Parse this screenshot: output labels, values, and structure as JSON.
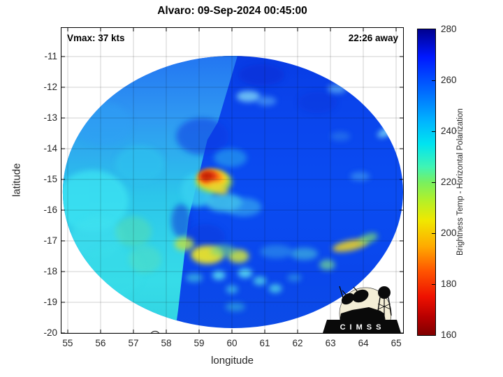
{
  "figure": {
    "title": "Alvaro: 09-Sep-2024 00:45:00"
  },
  "annotations": {
    "vmax": "Vmax: 37 kts",
    "countdown": "22:26 away"
  },
  "chart_data": {
    "type": "heatmap",
    "title": "Alvaro: 09-Sep-2024 00:45:00",
    "subtitle_left": "Vmax: 37 kts",
    "subtitle_right": "22:26 away",
    "xlabel": "longitude",
    "ylabel": "latitude",
    "xlim": [
      54.81,
      65.21
    ],
    "ylim": [
      -10.07,
      -20.0
    ],
    "xticks": [
      55,
      56,
      57,
      58,
      59,
      60,
      61,
      62,
      63,
      64,
      65
    ],
    "yticks": [
      -11,
      -12,
      -13,
      -14,
      -15,
      -16,
      -17,
      -18,
      -19,
      -20
    ],
    "grid": true,
    "grid_color": "rgba(0,0,0,0.18)",
    "colorbar": {
      "label": "Brightness Temp - Horizontal Polarization",
      "min": 160,
      "max": 280,
      "ticks": [
        160,
        180,
        200,
        220,
        240,
        260,
        280
      ],
      "stops": [
        [
          0,
          "#00008f"
        ],
        [
          0.09,
          "#0018ff"
        ],
        [
          0.2,
          "#0068ff"
        ],
        [
          0.3,
          "#00b4ff"
        ],
        [
          0.375,
          "#00e4f0"
        ],
        [
          0.45,
          "#40f4b4"
        ],
        [
          0.5,
          "#78f060"
        ],
        [
          0.56,
          "#b4f028"
        ],
        [
          0.625,
          "#f0e800"
        ],
        [
          0.71,
          "#ffaa00"
        ],
        [
          0.79,
          "#ff5500"
        ],
        [
          0.875,
          "#ee1100"
        ],
        [
          0.94,
          "#b80000"
        ],
        [
          1,
          "#800000"
        ]
      ]
    },
    "swath": {
      "center": [
        60.03,
        -15.41
      ],
      "radius_deg": [
        5.18,
        4.43
      ],
      "seam": [
        [
          60.19,
          -10.9
        ],
        [
          59.57,
          -13.14
        ],
        [
          59.25,
          -13.71
        ],
        [
          58.68,
          -16.25
        ],
        [
          58.36,
          -19.27
        ],
        [
          58.25,
          -20.1
        ]
      ],
      "right_gradient": [
        [
          0,
          "#0636e0"
        ],
        [
          0.25,
          "#0a44ec"
        ],
        [
          0.55,
          "#0a4cf2"
        ],
        [
          0.8,
          "#0a46ec"
        ],
        [
          1,
          "#0c4ce6"
        ]
      ],
      "left_gradient": [
        [
          0,
          "#1a5ef2"
        ],
        [
          0.3,
          "#2f97f2"
        ],
        [
          0.55,
          "#2cc6ea"
        ],
        [
          0.8,
          "#36dce8"
        ],
        [
          1,
          "#30d0e0"
        ]
      ]
    },
    "storm_center": {
      "lon": 59.28,
      "lat": -14.9,
      "core_color": "#bb1d06"
    },
    "coastline": {
      "name": "island-outline",
      "lon": 57.66,
      "lat": -20.1,
      "radius_deg": 0.15
    },
    "features_schema": "[lon, lat, rx_deg, ry_deg, color, opacity, rotation_deg?]",
    "features": [
      [
        55.75,
        -15.7,
        1.1,
        1.0,
        "#3ee4f2",
        0.75
      ],
      [
        55.9,
        -16.9,
        0.8,
        0.7,
        "#40e0ee",
        0.6
      ],
      [
        56.35,
        -18.0,
        0.95,
        0.85,
        "#38dce8",
        0.7
      ],
      [
        57.0,
        -16.7,
        0.55,
        0.5,
        "#55ddb0",
        0.55
      ],
      [
        57.35,
        -17.6,
        0.5,
        0.45,
        "#58dfb8",
        0.45
      ],
      [
        56.1,
        -13.2,
        0.85,
        0.7,
        "#2f9ff4",
        0.55
      ],
      [
        57.2,
        -14.5,
        0.75,
        0.6,
        "#2fc4ee",
        0.6
      ],
      [
        60.9,
        -11.6,
        0.7,
        0.35,
        "#0a2cd2",
        0.5
      ],
      [
        62.6,
        -12.5,
        0.6,
        0.35,
        "#0c34da",
        0.45
      ],
      [
        59.1,
        -13.6,
        0.8,
        0.6,
        "#0a38e2",
        0.55
      ],
      [
        58.45,
        -16.35,
        0.3,
        0.55,
        "#0c30d8",
        0.55
      ],
      [
        59.2,
        -16.9,
        0.6,
        0.45,
        "#0a38da",
        0.5
      ],
      [
        58.95,
        -15.35,
        0.5,
        0.55,
        "#38d0f0",
        0.85
      ],
      [
        59.75,
        -15.75,
        0.55,
        0.3,
        "#4cd8e8",
        0.75
      ],
      [
        60.35,
        -15.9,
        0.55,
        0.3,
        "#3cb8ee",
        0.6
      ],
      [
        59.95,
        -14.3,
        0.5,
        0.3,
        "#2fb4ec",
        0.55
      ],
      [
        59.45,
        -15.08,
        0.55,
        0.36,
        "#9ade4a",
        0.9
      ],
      [
        59.42,
        -15.0,
        0.45,
        0.29,
        "#ffd822",
        1
      ],
      [
        59.35,
        -14.94,
        0.36,
        0.23,
        "#ff8312",
        1
      ],
      [
        59.28,
        -14.9,
        0.27,
        0.17,
        "#e23108",
        1
      ],
      [
        59.23,
        -14.88,
        0.17,
        0.11,
        "#bb1d06",
        1
      ],
      [
        59.58,
        -15.28,
        0.32,
        0.16,
        "#e8d62e",
        0.85,
        25
      ],
      [
        58.55,
        -17.1,
        0.3,
        0.22,
        "#b8e048",
        0.85
      ],
      [
        59.25,
        -17.45,
        0.5,
        0.3,
        "#eae42a",
        0.95
      ],
      [
        60.2,
        -17.5,
        0.32,
        0.22,
        "#d2e83a",
        0.85
      ],
      [
        59.72,
        -17.32,
        0.38,
        0.2,
        "#74d883",
        0.6
      ],
      [
        63.6,
        -17.15,
        0.55,
        0.17,
        "#e8d028",
        0.9,
        -12
      ],
      [
        64.15,
        -16.92,
        0.3,
        0.15,
        "#7cdc72",
        0.75,
        -20
      ],
      [
        62.9,
        -17.78,
        0.24,
        0.17,
        "#72d892",
        0.75
      ],
      [
        62.2,
        -17.42,
        0.42,
        0.2,
        "#4ac6da",
        0.6
      ],
      [
        61.35,
        -17.35,
        0.5,
        0.22,
        "#3aa8e8",
        0.5
      ],
      [
        59.6,
        -18.12,
        0.2,
        0.15,
        "#5ce2f2",
        0.85
      ],
      [
        60.4,
        -18.05,
        0.22,
        0.16,
        "#5ce2f2",
        0.85
      ],
      [
        60.85,
        -18.3,
        0.2,
        0.14,
        "#52daea",
        0.8
      ],
      [
        61.32,
        -18.55,
        0.2,
        0.14,
        "#52daea",
        0.8
      ],
      [
        60.0,
        -18.58,
        0.18,
        0.13,
        "#4ad2ea",
        0.7
      ],
      [
        58.85,
        -18.2,
        0.26,
        0.15,
        "#42cae2",
        0.65
      ],
      [
        60.1,
        -19.15,
        0.3,
        0.14,
        "#3ac2da",
        0.55
      ],
      [
        61.9,
        -18.2,
        0.22,
        0.13,
        "#3eb4e4",
        0.5
      ],
      [
        60.5,
        -12.3,
        0.36,
        0.18,
        "#82daf8",
        0.8
      ],
      [
        61.05,
        -12.45,
        0.3,
        0.15,
        "#62baf8",
        0.55
      ],
      [
        63.2,
        -12.05,
        0.28,
        0.15,
        "#72caf8",
        0.6
      ],
      [
        64.72,
        -13.45,
        0.32,
        0.13,
        "#82e2f8",
        0.8,
        -25
      ],
      [
        63.9,
        -14.9,
        0.3,
        0.14,
        "#52b4f0",
        0.5
      ],
      [
        63.3,
        -13.6,
        0.3,
        0.15,
        "#3a92ea",
        0.45
      ]
    ],
    "logo": {
      "text": "CIMSS"
    }
  }
}
